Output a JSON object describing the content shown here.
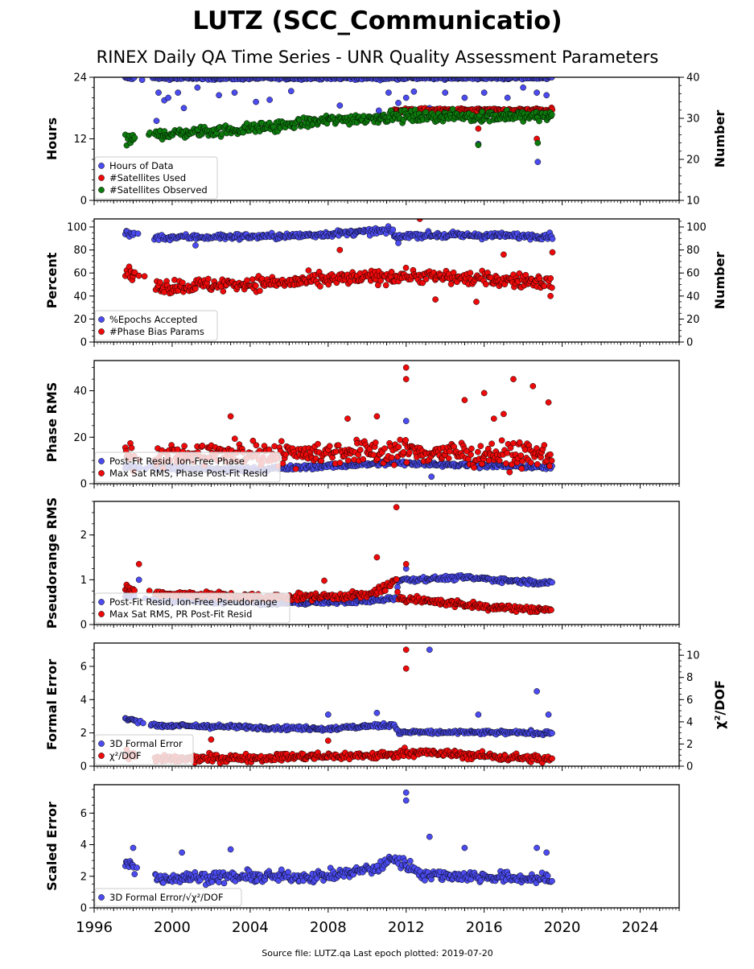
{
  "title": "LUTZ (SCC_Communicatio)",
  "subtitle": "RINEX Daily QA Time Series - UNR Quality Assessment Parameters",
  "footer": "Source file: LUTZ.qa Last epoch plotted: 2019-07-20",
  "colors": {
    "blue": "#4b4bef",
    "red": "#ee0a0a",
    "green": "#0d7a0d",
    "edge": "#000000"
  },
  "x_axis": {
    "range": [
      1996.0,
      2026.0
    ],
    "ticks": [
      "1996",
      "2000",
      "2004",
      "2008",
      "2012",
      "2016",
      "2020",
      "2024"
    ]
  },
  "chart_data": [
    {
      "type": "scatter",
      "ylabel": "Hours",
      "ylim": [
        0,
        24
      ],
      "yticks": [
        "0",
        "12",
        "24"
      ],
      "ylabel_right": "Number",
      "ylim_right": [
        10,
        40
      ],
      "yticks_right": [
        "10",
        "20",
        "30",
        "40"
      ],
      "legend_position": "lower-left",
      "series": [
        {
          "name": "Hours of Data",
          "color": "blue",
          "axis": "left",
          "trend": [
            [
              1997.6,
              23.8
            ],
            [
              2019.5,
              23.9
            ]
          ],
          "spread": 0.3,
          "outliers": [
            [
              1999.3,
              21
            ],
            [
              1999.6,
              19.5
            ],
            [
              1999.8,
              20
            ],
            [
              2000.3,
              21
            ],
            [
              2000.6,
              18
            ],
            [
              2001.3,
              22
            ],
            [
              2002.4,
              20.5
            ],
            [
              2003.2,
              21
            ],
            [
              2004.3,
              19.2
            ],
            [
              2005.0,
              19.6
            ],
            [
              2006.1,
              21.3
            ],
            [
              2008.6,
              18.5
            ],
            [
              2010.6,
              17.5
            ],
            [
              2011.1,
              21
            ],
            [
              2011.6,
              19
            ],
            [
              2012.0,
              20
            ],
            [
              2012.4,
              21.2
            ],
            [
              2013.2,
              18
            ],
            [
              2014.0,
              21
            ],
            [
              2015.0,
              20
            ],
            [
              2016.0,
              21
            ],
            [
              2017.2,
              20
            ],
            [
              2018.0,
              22
            ],
            [
              2018.7,
              21
            ],
            [
              2019.2,
              20.5
            ],
            [
              2015.7,
              11
            ],
            [
              2018.75,
              7.5
            ],
            [
              1999.2,
              15.5
            ]
          ]
        },
        {
          "name": "#Satellites Used",
          "color": "red",
          "axis": "right",
          "trend": [
            [
              2011.4,
              32
            ],
            [
              2019.5,
              32
            ]
          ],
          "spread": 0.4,
          "outliers": [
            [
              2015.7,
              27.5
            ],
            [
              2018.7,
              25
            ]
          ]
        },
        {
          "name": "#Satellites Observed",
          "color": "green",
          "axis": "right",
          "trend": [
            [
              1997.6,
              24.5
            ],
            [
              1999.0,
              26.0
            ],
            [
              2004.0,
              27.5
            ],
            [
              2008.0,
              29.5
            ],
            [
              2011.5,
              30.5
            ],
            [
              2019.5,
              30.5
            ]
          ],
          "spread": 1.3,
          "outliers": [
            [
              2015.7,
              23.5
            ],
            [
              2018.75,
              24
            ]
          ]
        }
      ]
    },
    {
      "type": "scatter",
      "ylabel": "Percent",
      "ylim": [
        0,
        107
      ],
      "yticks": [
        "0",
        "20",
        "40",
        "60",
        "80",
        "100"
      ],
      "ylabel_right": "Number",
      "ylim_right": [
        0,
        107
      ],
      "yticks_right": [
        "0",
        "20",
        "40",
        "60",
        "80",
        "100"
      ],
      "legend_position": "lower-left",
      "series": [
        {
          "name": "%Epochs Accepted",
          "color": "blue",
          "axis": "left",
          "trend": [
            [
              1997.6,
              95
            ],
            [
              1999.2,
              91
            ],
            [
              2006.0,
              92
            ],
            [
              2011.3,
              97
            ],
            [
              2011.5,
              90
            ],
            [
              2012.0,
              93
            ],
            [
              2019.5,
              92
            ]
          ],
          "spread": 2.5,
          "outliers": [
            [
              2001.2,
              84
            ],
            [
              2011.6,
              86
            ]
          ]
        },
        {
          "name": "#Phase Bias Params",
          "color": "red",
          "axis": "right",
          "trend": [
            [
              1997.6,
              62
            ],
            [
              1999.2,
              48
            ],
            [
              2006.0,
              52
            ],
            [
              2012.0,
              58
            ],
            [
              2019.5,
              52
            ]
          ],
          "spread": 6,
          "outliers": [
            [
              2012.7,
              107
            ],
            [
              2013.5,
              37
            ],
            [
              2015.6,
              35
            ],
            [
              2019.4,
              40
            ],
            [
              2017.0,
              76
            ],
            [
              2008.6,
              80
            ],
            [
              2019.5,
              78
            ]
          ]
        }
      ]
    },
    {
      "type": "scatter",
      "ylabel": "Phase RMS",
      "ylim": [
        0,
        53
      ],
      "yticks": [
        "0",
        "20",
        "40"
      ],
      "legend_position": "lower-left",
      "series": [
        {
          "name": "Post-Fit Resid, Ion-Free Phase",
          "color": "blue",
          "trend": [
            [
              1997.6,
              7
            ],
            [
              2004.0,
              6
            ],
            [
              2011.5,
              9
            ],
            [
              2019.5,
              7
            ]
          ],
          "spread": 1.0,
          "outliers": [
            [
              2012.0,
              27
            ],
            [
              2013.3,
              3
            ]
          ]
        },
        {
          "name": "Max Sat RMS, Phase Post-Fit Resid",
          "color": "red",
          "trend": [
            [
              1997.6,
              12
            ],
            [
              2003.0,
              13
            ],
            [
              2011.5,
              14
            ],
            [
              2019.5,
              12
            ]
          ],
          "spread": 5,
          "outliers": [
            [
              2012.0,
              50
            ],
            [
              2012.0,
              45
            ],
            [
              2015.0,
              36
            ],
            [
              2016.0,
              39
            ],
            [
              2017.0,
              30
            ],
            [
              2017.5,
              45
            ],
            [
              2018.5,
              42
            ],
            [
              2019.3,
              35
            ],
            [
              2003.0,
              29
            ],
            [
              2009.0,
              28
            ],
            [
              2010.5,
              29
            ],
            [
              2016.5,
              28
            ]
          ]
        }
      ]
    },
    {
      "type": "scatter",
      "ylabel": "Pseudorange RMS",
      "ylim": [
        0,
        2.75
      ],
      "yticks": [
        "0",
        "1",
        "2"
      ],
      "legend_position": "lower-left",
      "series": [
        {
          "name": "Post-Fit Resid, Ion-Free Pseudorange",
          "color": "blue",
          "trend": [
            [
              1997.6,
              0.65
            ],
            [
              1999.2,
              0.55
            ],
            [
              2005.0,
              0.48
            ],
            [
              2010.0,
              0.52
            ],
            [
              2011.5,
              0.6
            ],
            [
              2011.6,
              1.0
            ],
            [
              2015.0,
              1.05
            ],
            [
              2019.5,
              0.92
            ]
          ],
          "spread": 0.05,
          "outliers": [
            [
              1998.3,
              1.0
            ],
            [
              2012.0,
              1.25
            ]
          ]
        },
        {
          "name": "Max Sat RMS, PR Post-Fit Resid",
          "color": "red",
          "trend": [
            [
              1997.6,
              0.8
            ],
            [
              1999.2,
              0.7
            ],
            [
              2005.0,
              0.6
            ],
            [
              2010.0,
              0.65
            ],
            [
              2011.5,
              0.95
            ],
            [
              2011.6,
              0.6
            ],
            [
              2016.0,
              0.4
            ],
            [
              2019.5,
              0.32
            ]
          ],
          "spread": 0.08,
          "outliers": [
            [
              2011.5,
              2.62
            ],
            [
              2010.5,
              1.5
            ],
            [
              2012.0,
              1.35
            ],
            [
              2007.8,
              0.98
            ],
            [
              1998.3,
              1.35
            ]
          ]
        }
      ]
    },
    {
      "type": "scatter",
      "ylabel": "Formal Error",
      "ylim": [
        0,
        7.4
      ],
      "yticks": [
        "0",
        "2",
        "4",
        "6"
      ],
      "ylabel_right": "χ²/DOF",
      "ylim_right": [
        0,
        11.1
      ],
      "yticks_right": [
        "0",
        "2",
        "4",
        "6",
        "8",
        "10"
      ],
      "legend_position": "lower-left",
      "series": [
        {
          "name": "3D Formal Error",
          "color": "blue",
          "axis": "left",
          "trend": [
            [
              1997.6,
              2.85
            ],
            [
              1999.2,
              2.45
            ],
            [
              2008.0,
              2.25
            ],
            [
              2011.4,
              2.5
            ],
            [
              2011.6,
              2.05
            ],
            [
              2019.5,
              2.0
            ]
          ],
          "spread": 0.12,
          "outliers": [
            [
              2013.2,
              7.0
            ],
            [
              2018.7,
              4.5
            ],
            [
              2015.7,
              3.1
            ],
            [
              2019.3,
              3.1
            ],
            [
              2008.0,
              3.1
            ],
            [
              2010.5,
              3.2
            ]
          ]
        },
        {
          "name": "χ²/DOF",
          "color": "red",
          "axis": "right",
          "trend": [
            [
              1997.6,
              1.0
            ],
            [
              1999.2,
              0.6
            ],
            [
              2011.3,
              1.0
            ],
            [
              2012.0,
              1.3
            ],
            [
              2019.5,
              0.6
            ]
          ],
          "spread": 0.35,
          "outliers": [
            [
              2012.0,
              10.5
            ],
            [
              2012.0,
              8.8
            ],
            [
              2002.0,
              2.4
            ],
            [
              2008.0,
              2.3
            ]
          ]
        }
      ]
    },
    {
      "type": "scatter",
      "ylabel": "Scaled Error",
      "ylim": [
        0,
        7.8
      ],
      "yticks": [
        "0",
        "2",
        "4",
        "6"
      ],
      "legend_position": "lower-left",
      "series": [
        {
          "name": "3D Formal Error/√χ²/DOF",
          "color": "blue",
          "trend": [
            [
              1997.6,
              2.8
            ],
            [
              1999.2,
              1.9
            ],
            [
              2008.0,
              2.0
            ],
            [
              2010.8,
              2.6
            ],
            [
              2011.2,
              3.2
            ],
            [
              2013.0,
              2.1
            ],
            [
              2019.5,
              1.8
            ]
          ],
          "spread": 0.35,
          "outliers": [
            [
              2012.0,
              7.3
            ],
            [
              2012.0,
              6.8
            ],
            [
              2013.2,
              4.5
            ],
            [
              2015.0,
              3.8
            ],
            [
              2018.7,
              3.8
            ],
            [
              2019.2,
              3.5
            ],
            [
              2000.5,
              3.5
            ],
            [
              2003.0,
              3.7
            ],
            [
              1998.0,
              3.8
            ]
          ]
        }
      ]
    }
  ]
}
